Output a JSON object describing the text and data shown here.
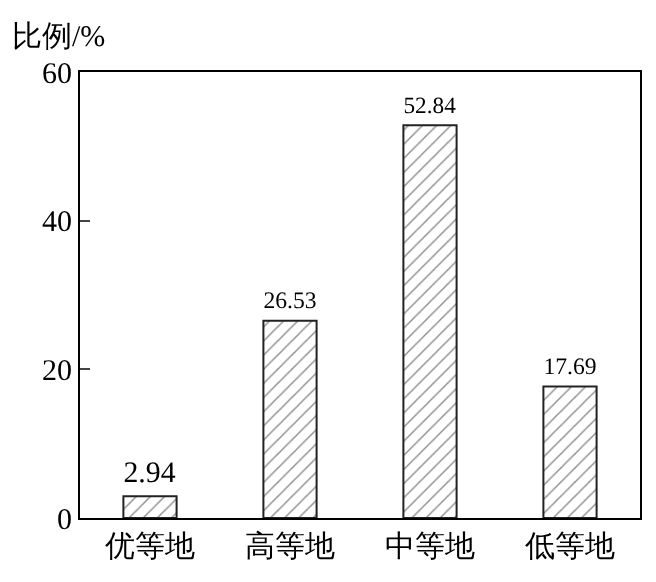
{
  "chart_data": {
    "type": "bar",
    "ylabel": "比例/%",
    "categories": [
      "优等地",
      "高等地",
      "中等地",
      "低等地"
    ],
    "values": [
      2.94,
      26.53,
      52.84,
      17.69
    ],
    "color": "#222222",
    "ylim": [
      0,
      60
    ],
    "yticks": [
      0,
      20,
      40,
      60
    ],
    "data_labels": true
  }
}
